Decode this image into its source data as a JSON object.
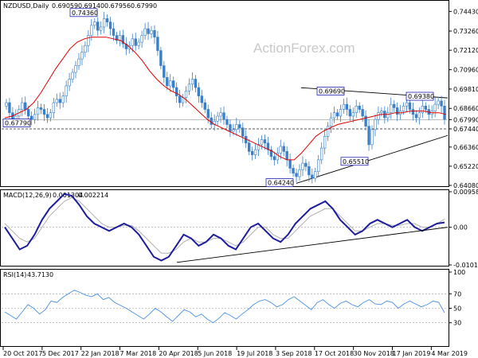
{
  "header": {
    "price_title": "NZDUSD,Daily",
    "ohlc": [
      "0.69059",
      "0.69140",
      "0.67956",
      "0.67990"
    ],
    "macd_title": "MACD(12,26,9)",
    "macd_values": [
      "0.001304",
      "0.002214"
    ],
    "rsi_title": "RSI(14)",
    "rsi_value": "43.7130",
    "watermark": "ActionForex.com"
  },
  "colors": {
    "candle_up": "#3a7fc8",
    "candle_down": "#3a7fc8",
    "sma": "#e00000",
    "macd_line": "#1c1c9c",
    "signal_line": "#b0b0b0",
    "rsi_line": "#4a90e2",
    "trendline": "#000000",
    "box_border": "#0000aa"
  },
  "chart_data": [
    {
      "type": "candlestick",
      "title": "NZDUSD,Daily",
      "ylim": [
        0.6408,
        0.7454
      ],
      "y_ticks": [
        "0.74430",
        "0.73260",
        "0.72120",
        "0.70960",
        "0.69810",
        "0.68660",
        "0.67990",
        "0.67440",
        "0.66360",
        "0.65220",
        "0.64080"
      ],
      "x_ticks": [
        "20 Oct 2017",
        "5 Dec 2017",
        "22 Jan 2018",
        "7 Mar 2018",
        "20 Apr 2018",
        "5 Jun 2018",
        "19 Jul 2018",
        "3 Sep 2018",
        "17 Oct 2018",
        "30 Nov 2018",
        "17 Jan 2019",
        "4 Mar 2019"
      ],
      "annotations": [
        {
          "label": "0.74360",
          "value": 0.7436
        },
        {
          "label": "0.69690",
          "value": 0.6969
        },
        {
          "label": "0.69380",
          "value": 0.6938
        },
        {
          "label": "0.67790",
          "value": 0.6779
        },
        {
          "label": "0.65510",
          "value": 0.6551
        },
        {
          "label": "0.64240",
          "value": 0.6424
        }
      ],
      "last_price": "0.67990",
      "support_level": "0.67440",
      "closes": [
        0.69,
        0.684,
        0.68,
        0.682,
        0.686,
        0.69,
        0.686,
        0.682,
        0.68,
        0.683,
        0.687,
        0.686,
        0.683,
        0.681,
        0.684,
        0.69,
        0.692,
        0.69,
        0.694,
        0.7,
        0.704,
        0.708,
        0.712,
        0.716,
        0.72,
        0.724,
        0.73,
        0.736,
        0.738,
        0.733,
        0.735,
        0.74,
        0.738,
        0.734,
        0.73,
        0.727,
        0.73,
        0.725,
        0.722,
        0.724,
        0.728,
        0.724,
        0.726,
        0.73,
        0.734,
        0.731,
        0.733,
        0.729,
        0.721,
        0.712,
        0.705,
        0.7,
        0.703,
        0.699,
        0.694,
        0.69,
        0.693,
        0.697,
        0.701,
        0.704,
        0.699,
        0.694,
        0.69,
        0.686,
        0.681,
        0.677,
        0.679,
        0.682,
        0.684,
        0.68,
        0.677,
        0.673,
        0.674,
        0.677,
        0.675,
        0.67,
        0.666,
        0.661,
        0.659,
        0.662,
        0.665,
        0.668,
        0.666,
        0.662,
        0.658,
        0.656,
        0.66,
        0.664,
        0.661,
        0.656,
        0.651,
        0.648,
        0.646,
        0.65,
        0.654,
        0.652,
        0.647,
        0.645,
        0.649,
        0.656,
        0.663,
        0.67,
        0.676,
        0.681,
        0.684,
        0.682,
        0.686,
        0.689,
        0.686,
        0.682,
        0.684,
        0.688,
        0.686,
        0.682,
        0.676,
        0.665,
        0.674,
        0.68,
        0.684,
        0.685,
        0.681,
        0.684,
        0.689,
        0.687,
        0.683,
        0.685,
        0.688,
        0.69,
        0.686,
        0.683,
        0.681,
        0.684,
        0.688,
        0.686,
        0.683,
        0.685,
        0.689,
        0.691,
        0.688,
        0.68
      ],
      "sma_values": [
        0.681,
        0.682,
        0.684,
        0.686,
        0.69,
        0.696,
        0.703,
        0.71,
        0.716,
        0.722,
        0.726,
        0.728,
        0.729,
        0.729,
        0.729,
        0.728,
        0.727,
        0.724,
        0.72,
        0.715,
        0.709,
        0.704,
        0.7,
        0.697,
        0.695,
        0.692,
        0.688,
        0.684,
        0.68,
        0.677,
        0.675,
        0.673,
        0.671,
        0.669,
        0.667,
        0.665,
        0.663,
        0.661,
        0.658,
        0.656,
        0.656,
        0.66,
        0.665,
        0.67,
        0.673,
        0.675,
        0.677,
        0.678,
        0.679,
        0.68,
        0.681,
        0.682,
        0.683,
        0.683,
        0.684,
        0.684,
        0.685,
        0.685,
        0.685,
        0.684,
        0.684,
        0.683
      ]
    },
    {
      "type": "line",
      "title": "MACD(12,26,9)",
      "ylim": [
        -0.01018,
        0.009587
      ],
      "y_ticks": [
        "0.009587",
        "0.00",
        "-0.01018"
      ],
      "series": [
        {
          "name": "MACD",
          "values": [
            0.0,
            -0.003,
            -0.006,
            -0.005,
            -0.002,
            0.002,
            0.005,
            0.007,
            0.009,
            0.0085,
            0.006,
            0.003,
            0.001,
            0.0,
            -0.001,
            0.0,
            0.001,
            0.0,
            -0.002,
            -0.005,
            -0.008,
            -0.009,
            -0.008,
            -0.005,
            -0.002,
            -0.003,
            -0.005,
            -0.004,
            -0.002,
            -0.003,
            -0.005,
            -0.006,
            -0.003,
            0.0,
            0.001,
            -0.001,
            -0.003,
            -0.004,
            -0.002,
            0.001,
            0.003,
            0.005,
            0.006,
            0.007,
            0.005,
            0.002,
            0.0,
            -0.002,
            -0.001,
            0.001,
            0.002,
            0.001,
            0.0,
            0.001,
            0.002,
            0.0,
            -0.001,
            0.0,
            0.001,
            0.0013
          ]
        },
        {
          "name": "Signal",
          "values": [
            0.001,
            -0.001,
            -0.003,
            -0.004,
            -0.003,
            0.0,
            0.003,
            0.005,
            0.007,
            0.008,
            0.007,
            0.005,
            0.003,
            0.001,
            0.0,
            0.0,
            0.0005,
            0.0005,
            -0.001,
            -0.003,
            -0.005,
            -0.007,
            -0.007,
            -0.006,
            -0.004,
            -0.003,
            -0.004,
            -0.004,
            -0.003,
            -0.003,
            -0.004,
            -0.005,
            -0.004,
            -0.002,
            0.0,
            0.0,
            -0.002,
            -0.003,
            -0.003,
            -0.001,
            0.001,
            0.003,
            0.004,
            0.005,
            0.005,
            0.003,
            0.001,
            -0.001,
            -0.001,
            0.0,
            0.001,
            0.001,
            0.0005,
            0.0005,
            0.001,
            0.001,
            0.0,
            0.0,
            0.001,
            0.0022
          ]
        }
      ]
    },
    {
      "type": "line",
      "title": "RSI(14)",
      "ylim": [
        0,
        100
      ],
      "y_ticks": [
        "100",
        "70",
        "50",
        "30",
        "0"
      ],
      "series": [
        {
          "name": "RSI",
          "values": [
            45,
            40,
            35,
            45,
            55,
            50,
            42,
            48,
            60,
            58,
            65,
            70,
            75,
            72,
            68,
            66,
            70,
            62,
            65,
            58,
            54,
            50,
            45,
            40,
            35,
            42,
            50,
            45,
            38,
            32,
            40,
            48,
            45,
            38,
            42,
            35,
            30,
            36,
            44,
            40,
            35,
            42,
            48,
            55,
            60,
            62,
            58,
            52,
            55,
            62,
            66,
            60,
            54,
            48,
            58,
            62,
            55,
            50,
            57,
            60,
            55,
            52,
            58,
            62,
            56,
            55,
            60,
            58,
            50,
            56,
            60,
            56,
            52,
            55,
            60,
            58,
            44
          ]
        }
      ]
    }
  ]
}
